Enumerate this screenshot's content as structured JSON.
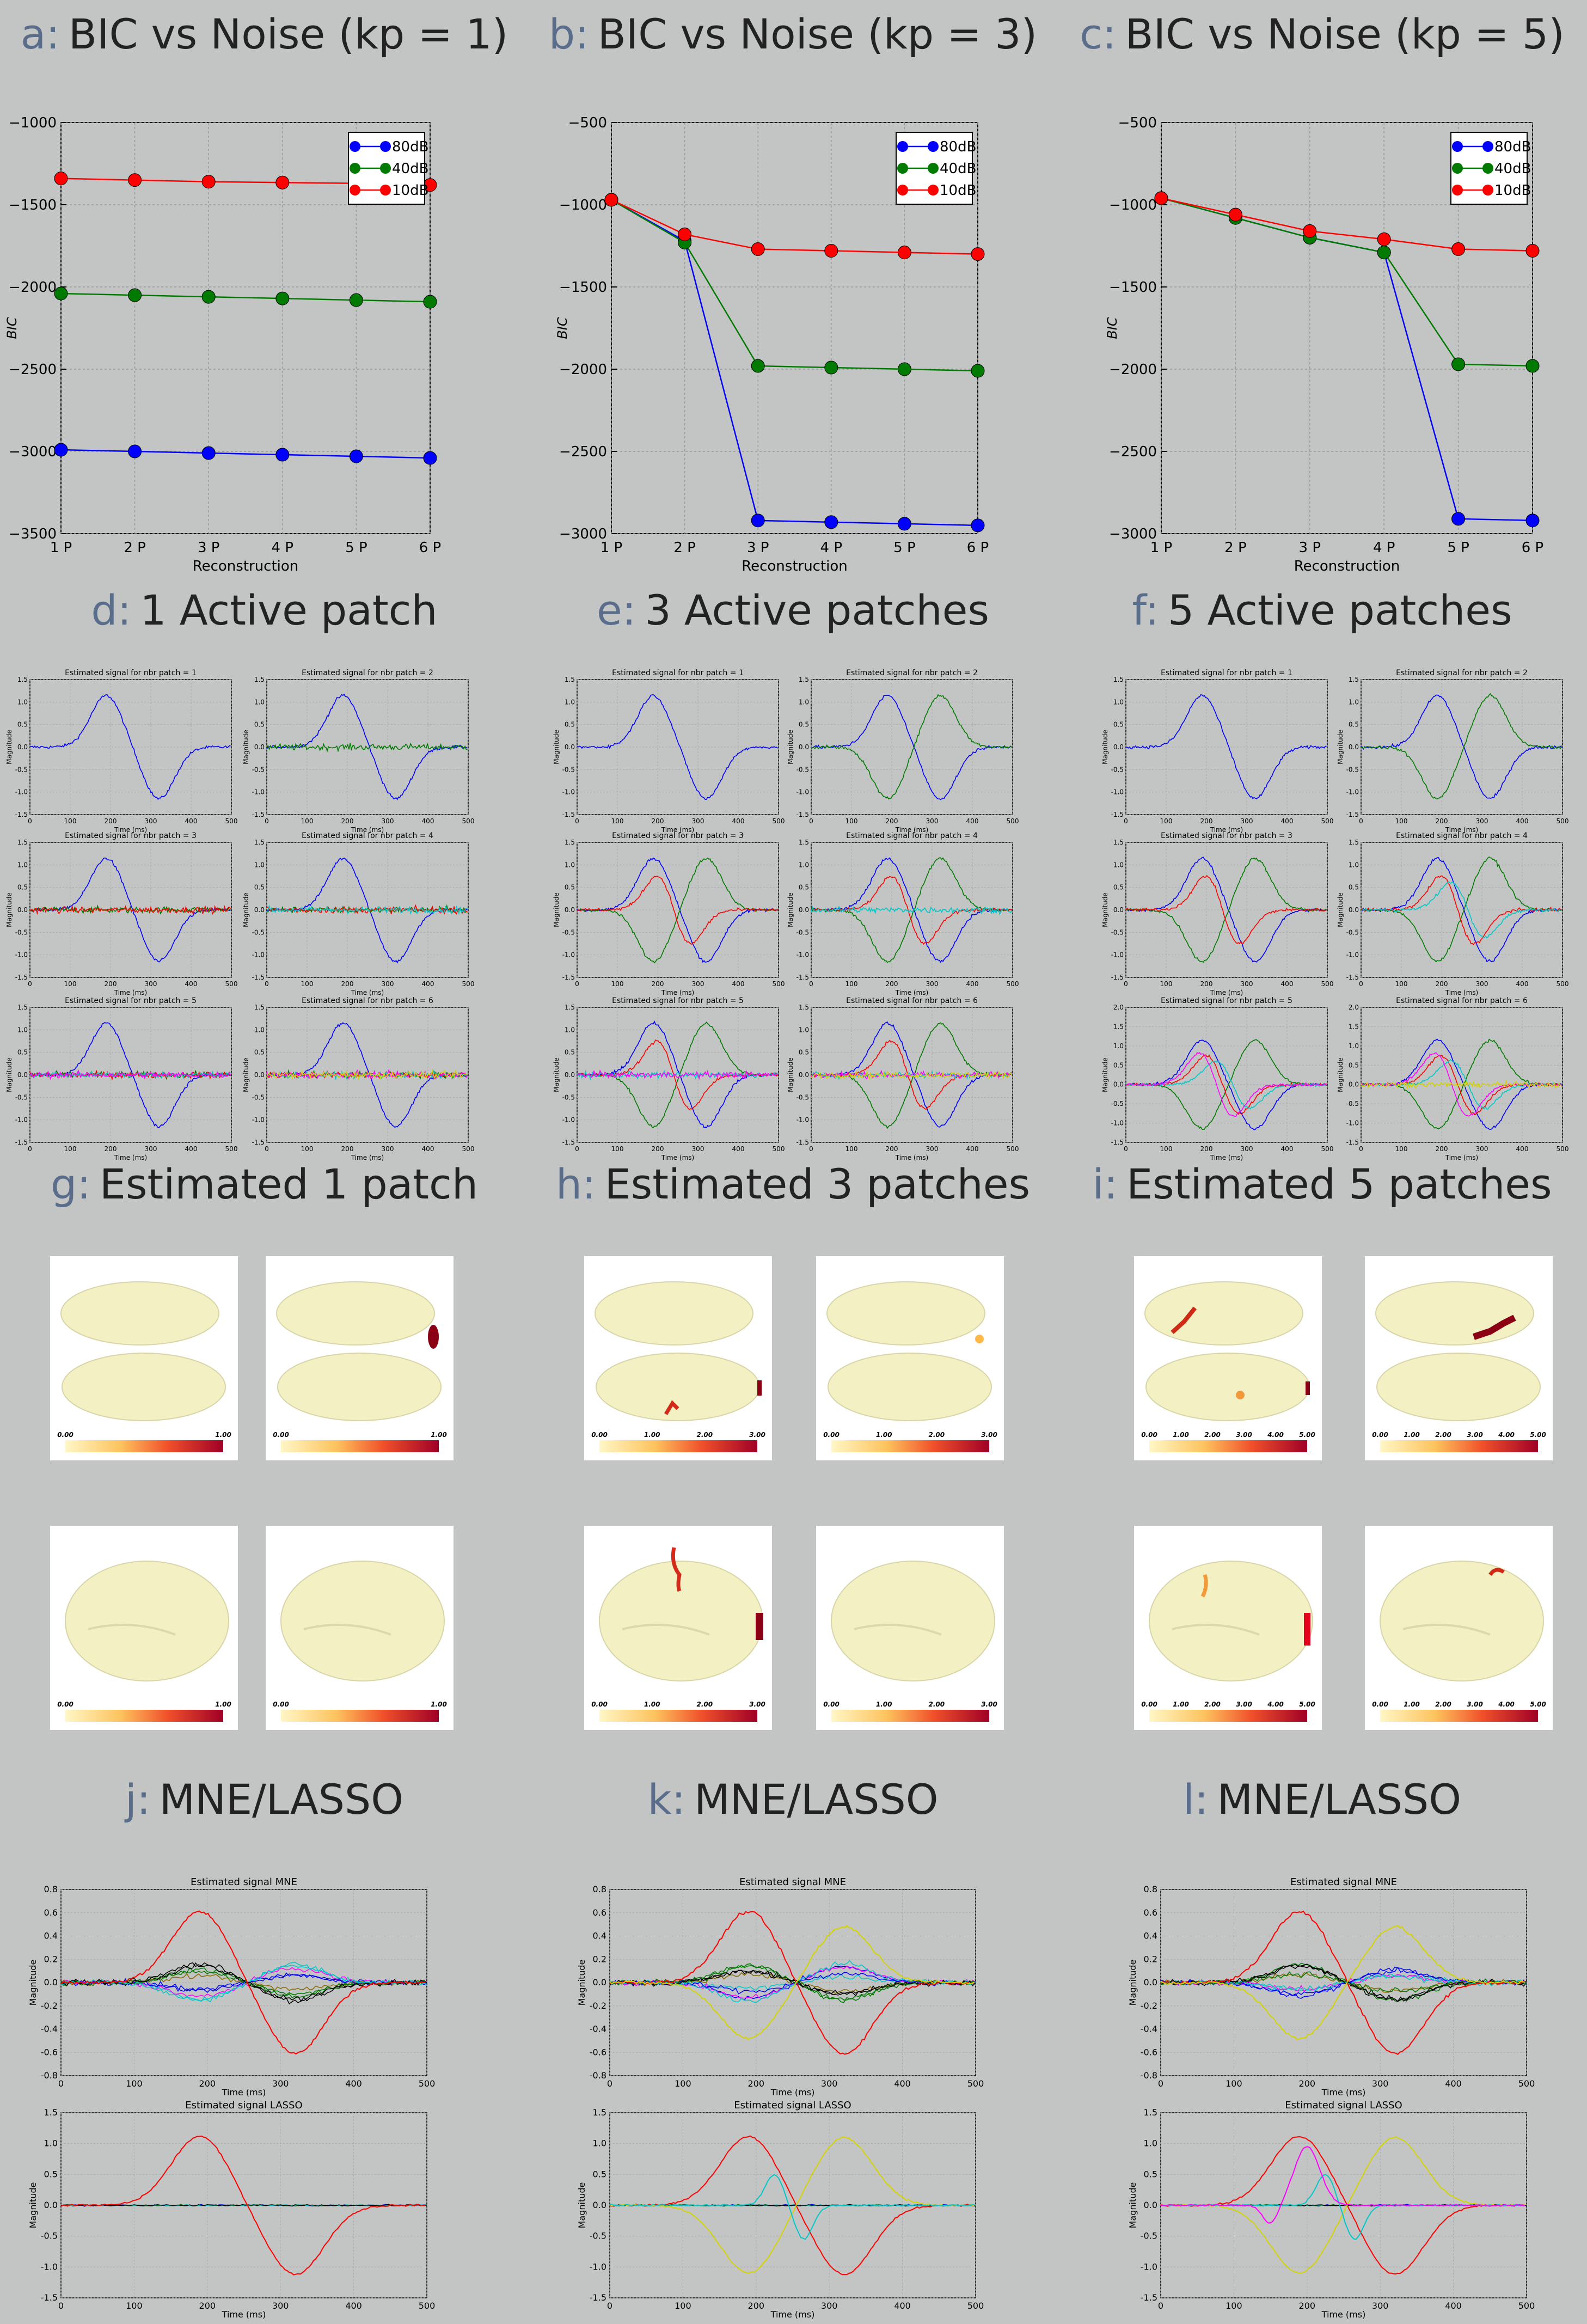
{
  "titles": {
    "a": {
      "letter": "a:",
      "text": "BIC vs Noise (kp = 1)"
    },
    "b": {
      "letter": "b:",
      "text": "BIC vs Noise (kp = 3)"
    },
    "c": {
      "letter": "c:",
      "text": "BIC vs Noise (kp = 5)"
    },
    "d": {
      "letter": "d:",
      "text": "1 Active patch"
    },
    "e": {
      "letter": "e:",
      "text": "3 Active patches"
    },
    "f": {
      "letter": "f:",
      "text": "5 Active patches"
    },
    "g": {
      "letter": "g:",
      "text": "Estimated 1 patch"
    },
    "h": {
      "letter": "h:",
      "text": "Estimated 3 patches"
    },
    "i": {
      "letter": "i:",
      "text": "Estimated 5 patches"
    },
    "j": {
      "letter": "j:",
      "text": "MNE/LASSO"
    },
    "k": {
      "letter": "k:",
      "text": "MNE/LASSO"
    },
    "l": {
      "letter": "l:",
      "text": "MNE/LASSO"
    }
  },
  "colors": {
    "blue": "#0000ff",
    "green": "#007a00",
    "red": "#ff0000",
    "cyan": "#00c8c8",
    "magenta": "#ff00ff",
    "yellow": "#d4d400",
    "gold": "#ffa500",
    "background": "#c3c5c4"
  },
  "chart_data": [
    {
      "id": "a",
      "type": "line",
      "categories": [
        "1 P",
        "2 P",
        "3 P",
        "4 P",
        "5 P",
        "6 P"
      ],
      "xlabel": "Reconstruction",
      "ylabel": "BIC",
      "ylim": [
        -3500,
        -1000
      ],
      "yticks": [
        -1000,
        -1500,
        -2000,
        -2500,
        -3000,
        -3500
      ],
      "legend": "top-right",
      "series": [
        {
          "name": "80dB",
          "color": "#0000ff",
          "values": [
            -2990,
            -3000,
            -3010,
            -3020,
            -3030,
            -3040
          ]
        },
        {
          "name": "40dB",
          "color": "#007a00",
          "values": [
            -2040,
            -2050,
            -2060,
            -2070,
            -2080,
            -2090
          ]
        },
        {
          "name": "10dB",
          "color": "#ff0000",
          "values": [
            -1340,
            -1350,
            -1360,
            -1365,
            -1370,
            -1380
          ]
        }
      ]
    },
    {
      "id": "b",
      "type": "line",
      "categories": [
        "1 P",
        "2 P",
        "3 P",
        "4 P",
        "5 P",
        "6 P"
      ],
      "xlabel": "Reconstruction",
      "ylabel": "BIC",
      "ylim": [
        -3000,
        -500
      ],
      "yticks": [
        -500,
        -1000,
        -1500,
        -2000,
        -2500,
        -3000
      ],
      "legend": "top-right",
      "series": [
        {
          "name": "80dB",
          "color": "#0000ff",
          "values": [
            -970,
            -1220,
            -2920,
            -2930,
            -2940,
            -2950
          ]
        },
        {
          "name": "40dB",
          "color": "#007a00",
          "values": [
            -970,
            -1230,
            -1980,
            -1990,
            -2000,
            -2010
          ]
        },
        {
          "name": "10dB",
          "color": "#ff0000",
          "values": [
            -970,
            -1180,
            -1270,
            -1280,
            -1290,
            -1300
          ]
        }
      ]
    },
    {
      "id": "c",
      "type": "line",
      "categories": [
        "1 P",
        "2 P",
        "3 P",
        "4 P",
        "5 P",
        "6 P"
      ],
      "xlabel": "Reconstruction",
      "ylabel": "BIC",
      "ylim": [
        -3000,
        -500
      ],
      "yticks": [
        -500,
        -1000,
        -1500,
        -2000,
        -2500,
        -3000
      ],
      "legend": "top-right",
      "series": [
        {
          "name": "80dB",
          "color": "#0000ff",
          "values": [
            -960,
            -1080,
            -1200,
            -1290,
            -2910,
            -2920
          ]
        },
        {
          "name": "40dB",
          "color": "#007a00",
          "values": [
            -960,
            -1080,
            -1200,
            -1290,
            -1970,
            -1980
          ]
        },
        {
          "name": "10dB",
          "color": "#ff0000",
          "values": [
            -960,
            -1060,
            -1160,
            -1210,
            -1270,
            -1280
          ]
        }
      ]
    },
    {
      "id": "def",
      "type": "line",
      "small_multiples": true,
      "groups": [
        {
          "id": "d",
          "active": 1
        },
        {
          "id": "e",
          "active": 3
        },
        {
          "id": "f",
          "active": 5
        }
      ],
      "panel_titles": [
        "Estimated signal for nbr patch = 1",
        "Estimated signal for nbr patch = 2",
        "Estimated signal for nbr patch = 3",
        "Estimated signal for nbr patch = 4",
        "Estimated signal for nbr patch = 5",
        "Estimated signal for nbr patch = 6"
      ],
      "xlabel": "Time (ms)",
      "ylabel": "Magnitude",
      "xlim": [
        0,
        500
      ],
      "xticks": [
        0,
        100,
        200,
        300,
        400,
        500
      ],
      "ylim": [
        -1.5,
        1.5
      ],
      "yticks": [
        1.5,
        1.0,
        0.5,
        0.0,
        -0.5,
        -1.0,
        -1.5
      ],
      "ylim_alt": [
        -1.5,
        2.0
      ],
      "yticks_alt": [
        2.0,
        1.5,
        1.0,
        0.5,
        0.0,
        -0.5,
        -1.0,
        -1.5
      ],
      "series_colors": [
        "#0000ff",
        "#007a00",
        "#ff0000",
        "#00c8c8",
        "#ff00ff",
        "#d4d400"
      ]
    },
    {
      "id": "ghi",
      "type": "heatmap",
      "groups": [
        {
          "id": "g",
          "colorbar_ticks": [
            "0.00",
            "1.00"
          ]
        },
        {
          "id": "h",
          "colorbar_ticks": [
            "0.00",
            "1.00",
            "2.00",
            "3.00"
          ]
        },
        {
          "id": "i",
          "colorbar_ticks": [
            "0.00",
            "1.00",
            "2.00",
            "3.00",
            "4.00",
            "5.00"
          ]
        }
      ]
    },
    {
      "id": "jkl",
      "type": "line",
      "mne_title": "Estimated signal MNE",
      "lasso_title": "Estimated signal LASSO",
      "xlabel": "Time (ms)",
      "ylabel": "Magnitude",
      "xlim": [
        0,
        500
      ],
      "xticks": [
        0,
        100,
        200,
        300,
        400,
        500
      ],
      "mne_ylim": [
        -0.8,
        0.8
      ],
      "mne_yticks": [
        0.8,
        0.6,
        0.4,
        0.2,
        0.0,
        -0.2,
        -0.4,
        -0.6,
        -0.8
      ],
      "lasso_ylim": [
        -1.5,
        1.5
      ],
      "lasso_yticks": [
        1.5,
        1.0,
        0.5,
        0.0,
        -0.5,
        -1.0,
        -1.5
      ],
      "mne_peak": 0.6,
      "lasso_peak": 1.1
    }
  ]
}
